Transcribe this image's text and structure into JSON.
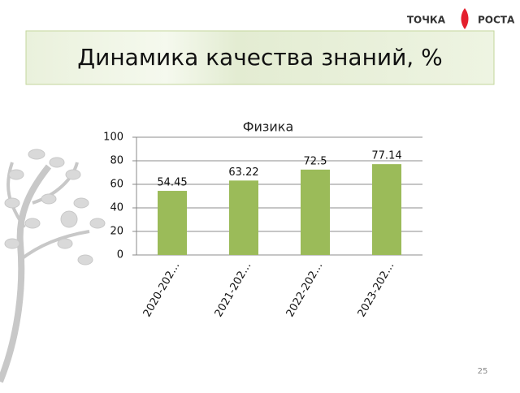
{
  "slide": {
    "title": "Динамика качества знаний, %",
    "logo_left": "ТОЧКА",
    "logo_right": "РОСТА",
    "page_number": 25
  },
  "chart_data": {
    "type": "bar",
    "title": "Физика",
    "categories": [
      "2020-202…",
      "2021-202…",
      "2022-202…",
      "2023-202…"
    ],
    "values": [
      54.45,
      63.22,
      72.5,
      77.14
    ],
    "color": "#9bbb59",
    "ylim": [
      0,
      100
    ],
    "yticks": [
      0,
      20,
      40,
      60,
      80,
      100
    ],
    "grid": true
  }
}
